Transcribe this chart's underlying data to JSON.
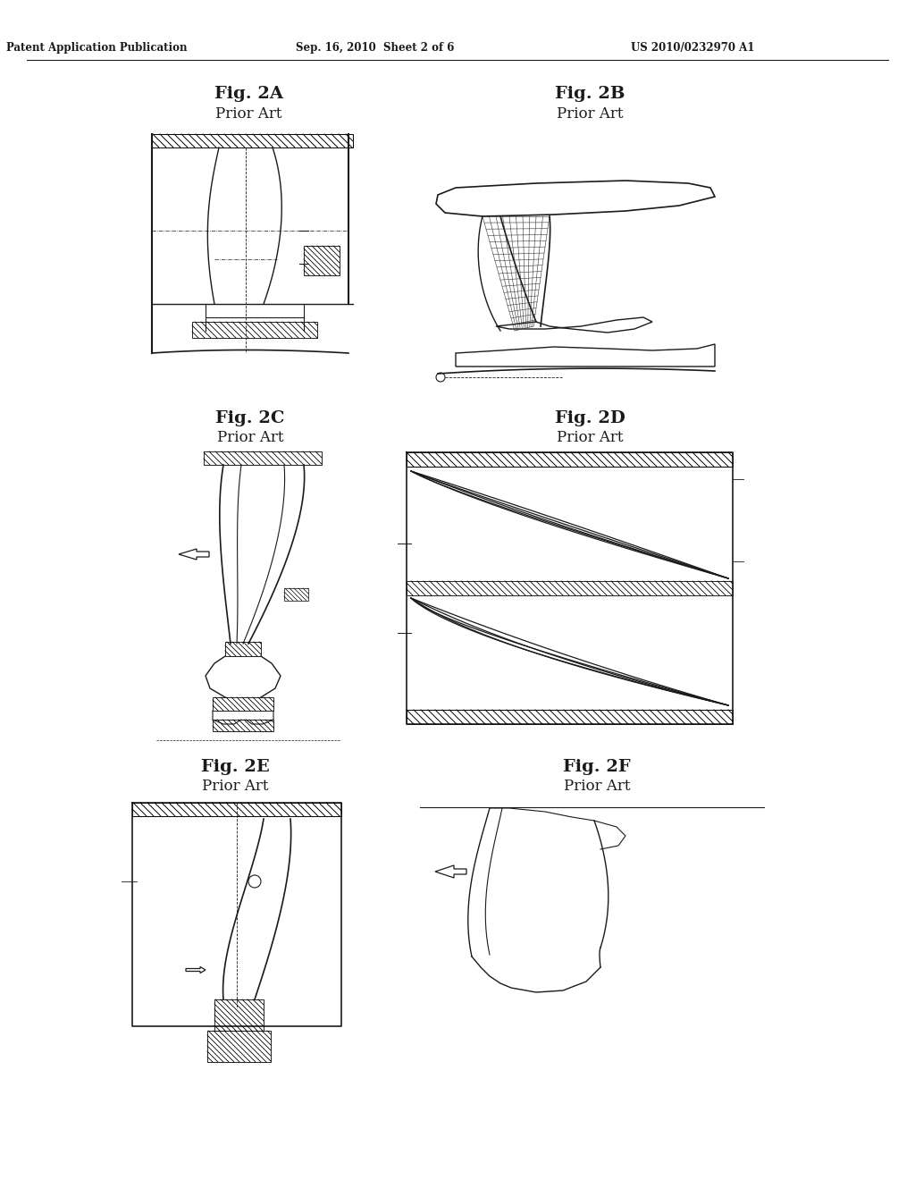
{
  "title_left": "Patent Application Publication",
  "title_mid": "Sep. 16, 2010  Sheet 2 of 6",
  "title_right": "US 2010/0232970 A1",
  "background_color": "#ffffff",
  "line_color": "#1a1a1a",
  "font_size_header": 8.5,
  "font_size_fig": 14,
  "font_size_prior": 12
}
